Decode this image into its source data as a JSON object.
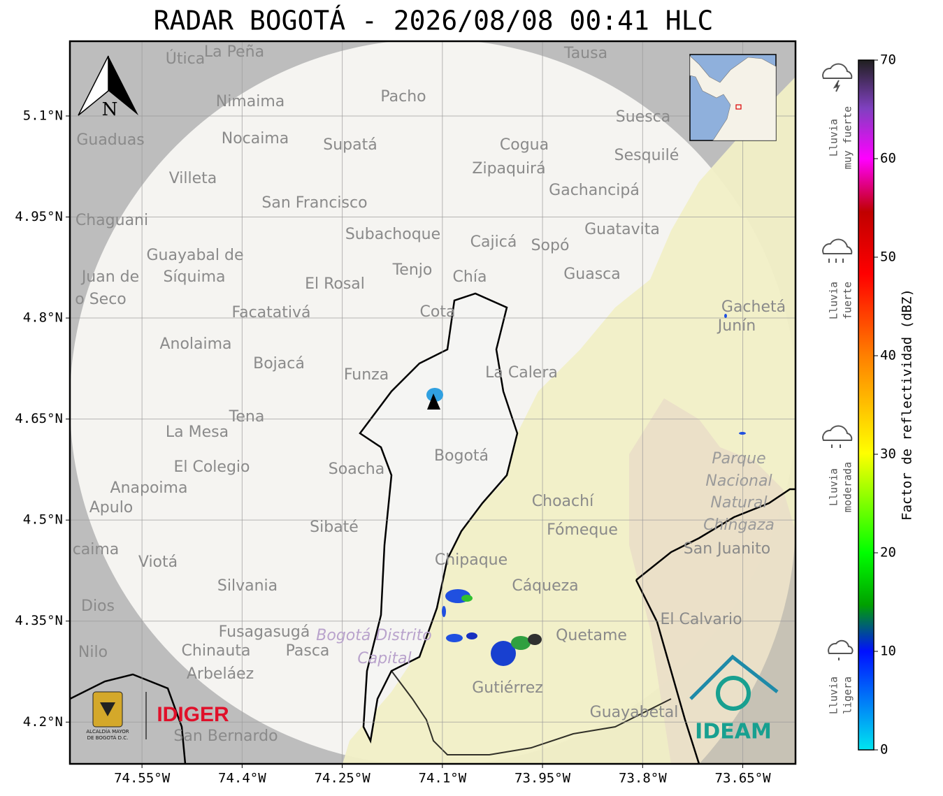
{
  "title": "RADAR BOGOTÁ - 2026/08/08 00:41 HLC",
  "map": {
    "lon_range": [
      -74.658,
      -73.571
    ],
    "lat_range": [
      4.138,
      5.211
    ],
    "lat_ticks": [
      {
        "value": 5.1,
        "label": "5.1°N"
      },
      {
        "value": 4.95,
        "label": "4.95°N"
      },
      {
        "value": 4.8,
        "label": "4.8°N"
      },
      {
        "value": 4.65,
        "label": "4.65°N"
      },
      {
        "value": 4.5,
        "label": "4.5°N"
      },
      {
        "value": 4.35,
        "label": "4.35°N"
      },
      {
        "value": 4.2,
        "label": "4.2°N"
      }
    ],
    "lon_ticks": [
      {
        "value": -74.55,
        "label": "74.55°W"
      },
      {
        "value": -74.4,
        "label": "74.4°W"
      },
      {
        "value": -74.25,
        "label": "74.25°W"
      },
      {
        "value": -74.1,
        "label": "74.1°W"
      },
      {
        "value": -73.95,
        "label": "73.95°W"
      },
      {
        "value": -73.8,
        "label": "73.8°W"
      },
      {
        "value": -73.65,
        "label": "73.65°W"
      }
    ],
    "north": "N",
    "places": [
      "Útica",
      "La Peña",
      "Tausa",
      "Pacho",
      "Nimaima",
      "Suesca",
      "Guaduas",
      "Nocaima",
      "Supatá",
      "Cogua",
      "Sesquilé",
      "Zipaquirá",
      "Villeta",
      "Gachancipá",
      "San Francisco",
      "Chaguani",
      "Guatavita",
      "Subachoque",
      "Cajicá",
      "Sopó",
      "Guayabal de",
      "Síquima",
      "Tenjo",
      "Juan de",
      "Chía",
      "Guasca",
      "El Rosal",
      "o Seco",
      "Facatativá",
      "Cota",
      "Gachetá",
      "Junín",
      "Anolaima",
      "Bojacá",
      "Funza",
      "La Calera",
      "Tena",
      "La Mesa",
      "Bogotá",
      "Soacha",
      "El Colegio",
      "Anapoima",
      "Apulo",
      "Choachí",
      "Sibaté",
      "Fómeque",
      "San Juanito",
      "caima",
      "Viotá",
      "Chipaque",
      "Silvania",
      "Cáqueza",
      "Dios",
      "El Calvario",
      "Fusagasugá",
      "Quetame",
      "Nilo",
      "Chinauta",
      "Pasca",
      "Arbeláez",
      "Gutiérrez",
      "Guayabetal",
      "San Bernardo"
    ],
    "park": [
      "Parque",
      "Nacional",
      "Natural",
      "Chingaza"
    ],
    "district": [
      "Bogotá Distrito",
      "Capital"
    ]
  },
  "colorbar": {
    "label": "Factor de reflectividad (dBZ)",
    "range": [
      0,
      70
    ],
    "ticks": [
      0,
      10,
      20,
      30,
      40,
      50,
      60,
      70
    ]
  },
  "legend": [
    [
      "Lluvia",
      "muy fuerte"
    ],
    [
      "Lluvia",
      "fuerte"
    ],
    [
      "Lluvia",
      "moderada"
    ],
    [
      "Lluvia",
      "ligera"
    ]
  ],
  "logos": {
    "alcaldia": [
      "ALCALDÍA MAYOR",
      "DE BOGOTÁ D.C."
    ],
    "idiger": "IDIGER",
    "ideam": "IDEAM"
  }
}
